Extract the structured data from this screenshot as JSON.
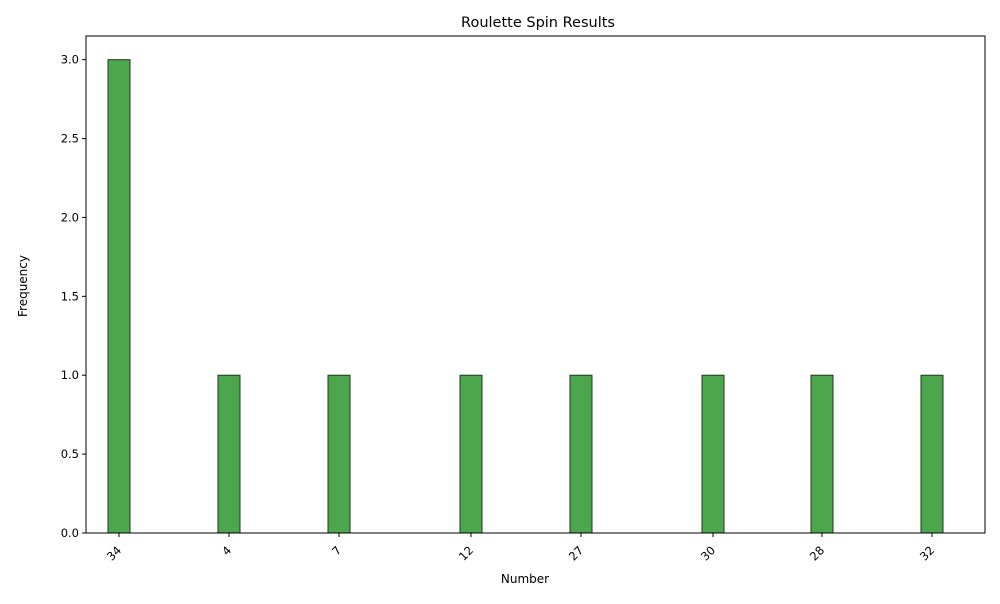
{
  "chart_data": {
    "type": "bar",
    "title": "Roulette Spin Results",
    "xlabel": "Number",
    "ylabel": "Frequency",
    "x": [
      34,
      4,
      7,
      12,
      27,
      30,
      28,
      32
    ],
    "x_tick_labels": [
      "34",
      "4",
      "7",
      "12",
      "27",
      "30",
      "28",
      "32"
    ],
    "values": [
      3,
      1,
      1,
      1,
      1,
      1,
      1,
      1
    ],
    "ylim": [
      0,
      3.15
    ],
    "y_ticks": [
      0.0,
      0.5,
      1.0,
      1.5,
      2.0,
      2.5,
      3.0
    ],
    "y_tick_labels": [
      "0.0",
      "0.5",
      "1.0",
      "1.5",
      "2.0",
      "2.5",
      "3.0"
    ],
    "grid": false,
    "colors": {
      "bar_fill": "#4ca64c",
      "bar_edge": "#1f3a1f",
      "axis": "#000000"
    }
  }
}
